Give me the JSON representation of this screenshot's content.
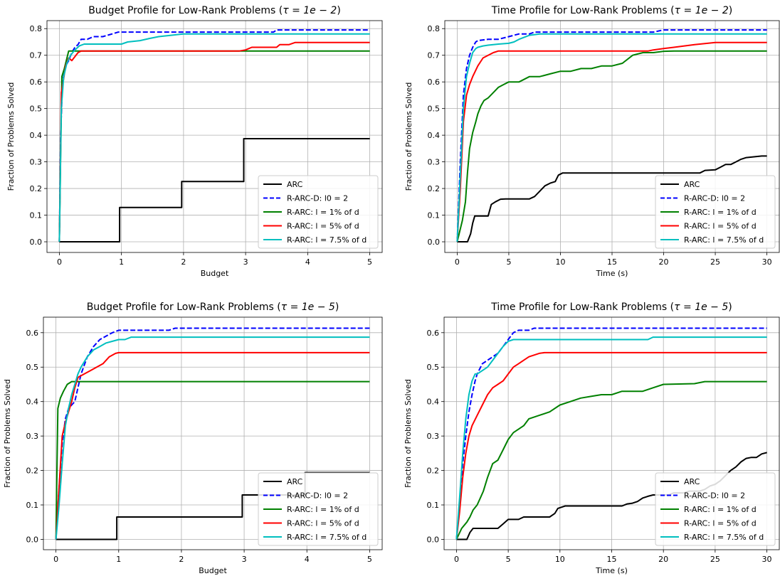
{
  "chart_data": [
    {
      "type": "line",
      "title_main": "Budget Profile for Low-Rank Problems (",
      "title_tau": "τ = 1e − 2",
      "title_end": ")",
      "xlabel": "Budget",
      "ylabel": "Fraction of Problems Solved",
      "xlim": [
        -0.2,
        5.2
      ],
      "ylim": [
        -0.04,
        0.83
      ],
      "xticks": [
        "0",
        "1",
        "2",
        "3",
        "4",
        "5"
      ],
      "yticks": [
        "0.0",
        "0.1",
        "0.2",
        "0.3",
        "0.4",
        "0.5",
        "0.6",
        "0.7",
        "0.8"
      ],
      "grid": true,
      "legend_position": "lower-right",
      "series": [
        {
          "name": "ARC",
          "color": "#000000",
          "dash": "solid",
          "x": [
            0,
            0.97,
            0.97,
            1.97,
            1.97,
            2.97,
            2.97,
            5
          ],
          "y": [
            0,
            0,
            0.129,
            0.129,
            0.226,
            0.226,
            0.387,
            0.387
          ]
        },
        {
          "name": "R-ARC-D: l0 = 2",
          "color": "#0000ff",
          "dash": "dashed",
          "x": [
            0,
            0.02,
            0.05,
            0.1,
            0.15,
            0.2,
            0.25,
            0.3,
            0.35,
            0.45,
            0.55,
            0.7,
            0.85,
            0.95,
            1.5,
            2.0,
            2.5,
            3.0,
            3.45,
            3.5,
            5
          ],
          "y": [
            0,
            0.4,
            0.6,
            0.66,
            0.68,
            0.71,
            0.73,
            0.74,
            0.76,
            0.76,
            0.77,
            0.77,
            0.78,
            0.787,
            0.787,
            0.787,
            0.787,
            0.787,
            0.787,
            0.795,
            0.795
          ]
        },
        {
          "name": "R-ARC: l = 1% of d",
          "color": "#008000",
          "dash": "solid",
          "x": [
            0,
            0.04,
            0.08,
            0.15,
            0.2,
            5
          ],
          "y": [
            0,
            0.62,
            0.65,
            0.716,
            0.716,
            0.716
          ]
        },
        {
          "name": "R-ARC: l = 5% of d",
          "color": "#ff0000",
          "dash": "solid",
          "x": [
            0,
            0.03,
            0.06,
            0.1,
            0.15,
            0.2,
            0.3,
            0.35,
            0.4,
            2.9,
            3.0,
            3.1,
            3.5,
            3.55,
            3.7,
            3.8,
            5
          ],
          "y": [
            0,
            0.56,
            0.6,
            0.66,
            0.69,
            0.68,
            0.71,
            0.716,
            0.716,
            0.716,
            0.72,
            0.73,
            0.73,
            0.74,
            0.74,
            0.748,
            0.748
          ]
        },
        {
          "name": "R-ARC: l = 7.5% of d",
          "color": "#00bfbf",
          "dash": "solid",
          "x": [
            0,
            0.03,
            0.07,
            0.12,
            0.18,
            0.25,
            0.32,
            0.4,
            1.0,
            1.1,
            1.3,
            1.45,
            1.6,
            1.8,
            2.0,
            3.0,
            5
          ],
          "y": [
            0,
            0.5,
            0.62,
            0.67,
            0.7,
            0.72,
            0.735,
            0.742,
            0.742,
            0.75,
            0.755,
            0.763,
            0.77,
            0.775,
            0.78,
            0.78,
            0.78
          ]
        }
      ]
    },
    {
      "type": "line",
      "title_main": "Time Profile for Low-Rank Problems (",
      "title_tau": "τ = 1e − 2",
      "title_end": ")",
      "xlabel": "Time (s)",
      "ylabel": "Fraction of Problems Solved",
      "xlim": [
        -1.2,
        31.2
      ],
      "ylim": [
        -0.04,
        0.83
      ],
      "xticks": [
        "0",
        "5",
        "10",
        "15",
        "20",
        "25",
        "30"
      ],
      "yticks": [
        "0.0",
        "0.1",
        "0.2",
        "0.3",
        "0.4",
        "0.5",
        "0.6",
        "0.7",
        "0.8"
      ],
      "grid": true,
      "legend_position": "lower-right",
      "series": [
        {
          "name": "ARC",
          "color": "#000000",
          "dash": "solid",
          "x": [
            0,
            1.0,
            1.3,
            1.5,
            1.7,
            2.0,
            3.0,
            3.3,
            3.7,
            4.2,
            4.7,
            5.0,
            7.0,
            7.5,
            8.0,
            8.5,
            9.0,
            9.5,
            9.8,
            10.2,
            10.5,
            22.0,
            23.5,
            24.0,
            25.0,
            25.5,
            26.0,
            26.5,
            27.0,
            27.5,
            28.0,
            29.5,
            30.0
          ],
          "y": [
            0,
            0,
            0.03,
            0.07,
            0.097,
            0.097,
            0.097,
            0.14,
            0.15,
            0.16,
            0.161,
            0.161,
            0.161,
            0.17,
            0.19,
            0.21,
            0.22,
            0.226,
            0.25,
            0.258,
            0.258,
            0.258,
            0.258,
            0.268,
            0.27,
            0.28,
            0.29,
            0.29,
            0.3,
            0.31,
            0.316,
            0.322,
            0.322
          ]
        },
        {
          "name": "R-ARC-D: l0 = 2",
          "color": "#0000ff",
          "dash": "dashed",
          "x": [
            0,
            0.3,
            0.6,
            0.9,
            1.2,
            1.5,
            1.8,
            2.0,
            3.0,
            4.0,
            5.0,
            6.0,
            7.0,
            7.5,
            8.0,
            19.0,
            20.0,
            30.0
          ],
          "y": [
            0,
            0.3,
            0.55,
            0.65,
            0.7,
            0.73,
            0.75,
            0.755,
            0.76,
            0.76,
            0.77,
            0.78,
            0.78,
            0.787,
            0.787,
            0.787,
            0.795,
            0.795
          ]
        },
        {
          "name": "R-ARC: l = 1% of d",
          "color": "#008000",
          "dash": "solid",
          "x": [
            0,
            0.5,
            0.8,
            1.0,
            1.2,
            1.5,
            1.8,
            2.0,
            2.3,
            2.6,
            3.0,
            3.5,
            4.0,
            4.5,
            5.0,
            6.0,
            7.0,
            8.0,
            9.0,
            10.0,
            11.0,
            12.0,
            13.0,
            14.0,
            15.0,
            16.0,
            17.0,
            18.0,
            19.0,
            20.0,
            21.0,
            30.0
          ],
          "y": [
            0,
            0.08,
            0.15,
            0.26,
            0.35,
            0.41,
            0.45,
            0.48,
            0.51,
            0.53,
            0.54,
            0.56,
            0.58,
            0.59,
            0.6,
            0.6,
            0.62,
            0.62,
            0.63,
            0.64,
            0.64,
            0.65,
            0.65,
            0.66,
            0.66,
            0.67,
            0.7,
            0.71,
            0.71,
            0.715,
            0.716,
            0.716
          ]
        },
        {
          "name": "R-ARC: l = 5% of d",
          "color": "#ff0000",
          "dash": "solid",
          "x": [
            0,
            0.3,
            0.6,
            0.9,
            1.2,
            1.5,
            2.0,
            2.5,
            3.0,
            3.5,
            4.0,
            18.5,
            19.0,
            20.0,
            21.0,
            23.0,
            25.0,
            25.5,
            30.0
          ],
          "y": [
            0,
            0.2,
            0.45,
            0.55,
            0.59,
            0.62,
            0.66,
            0.69,
            0.7,
            0.71,
            0.716,
            0.716,
            0.72,
            0.725,
            0.73,
            0.74,
            0.748,
            0.748,
            0.748
          ]
        },
        {
          "name": "R-ARC: l = 7.5% of d",
          "color": "#00bfbf",
          "dash": "solid",
          "x": [
            0,
            0.3,
            0.6,
            0.9,
            1.2,
            1.5,
            1.8,
            2.0,
            2.5,
            3.0,
            4.0,
            5.0,
            5.5,
            6.0,
            7.0,
            8.0,
            19.0,
            19.5,
            30.0
          ],
          "y": [
            0,
            0.25,
            0.5,
            0.62,
            0.67,
            0.71,
            0.725,
            0.73,
            0.735,
            0.738,
            0.742,
            0.745,
            0.75,
            0.76,
            0.775,
            0.78,
            0.78,
            0.78,
            0.78
          ]
        }
      ]
    },
    {
      "type": "line",
      "title_main": "Budget Profile for Low-Rank Problems (",
      "title_tau": "τ = 1e − 5",
      "title_end": ")",
      "xlabel": "Budget",
      "ylabel": "Fraction of Problems Solved",
      "xlim": [
        -0.2,
        5.2
      ],
      "ylim": [
        -0.03,
        0.645
      ],
      "xticks": [
        "0",
        "1",
        "2",
        "3",
        "4",
        "5"
      ],
      "yticks": [
        "0.0",
        "0.1",
        "0.2",
        "0.3",
        "0.4",
        "0.5",
        "0.6"
      ],
      "grid": true,
      "legend_position": "lower-right",
      "series": [
        {
          "name": "ARC",
          "color": "#000000",
          "dash": "solid",
          "x": [
            0,
            0.97,
            0.97,
            2.97,
            2.97,
            3.97,
            3.97,
            5
          ],
          "y": [
            0,
            0,
            0.065,
            0.065,
            0.129,
            0.129,
            0.194,
            0.194
          ]
        },
        {
          "name": "R-ARC-D: l0 = 2",
          "color": "#0000ff",
          "dash": "dashed",
          "x": [
            0,
            0.05,
            0.1,
            0.15,
            0.2,
            0.25,
            0.3,
            0.35,
            0.4,
            0.5,
            0.6,
            0.7,
            0.8,
            0.9,
            1.0,
            1.5,
            1.8,
            1.9,
            5
          ],
          "y": [
            0,
            0.15,
            0.28,
            0.35,
            0.38,
            0.39,
            0.4,
            0.44,
            0.48,
            0.53,
            0.56,
            0.58,
            0.59,
            0.6,
            0.607,
            0.607,
            0.607,
            0.613,
            0.613
          ]
        },
        {
          "name": "R-ARC: l = 1% of d",
          "color": "#008000",
          "dash": "solid",
          "x": [
            0,
            0.03,
            0.07,
            0.12,
            0.18,
            0.25,
            5
          ],
          "y": [
            0,
            0.38,
            0.41,
            0.43,
            0.45,
            0.458,
            0.458
          ]
        },
        {
          "name": "R-ARC: l = 5% of d",
          "color": "#ff0000",
          "dash": "solid",
          "x": [
            0,
            0.05,
            0.1,
            0.15,
            0.2,
            0.25,
            0.3,
            0.35,
            0.45,
            0.55,
            0.65,
            0.75,
            0.85,
            0.95,
            1.0,
            5
          ],
          "y": [
            0,
            0.15,
            0.3,
            0.34,
            0.37,
            0.4,
            0.44,
            0.47,
            0.48,
            0.49,
            0.5,
            0.51,
            0.53,
            0.54,
            0.542,
            0.542
          ]
        },
        {
          "name": "R-ARC: l = 7.5% of d",
          "color": "#00bfbf",
          "dash": "solid",
          "x": [
            0,
            0.05,
            0.1,
            0.15,
            0.2,
            0.25,
            0.3,
            0.35,
            0.4,
            0.5,
            0.6,
            0.7,
            0.8,
            0.9,
            1.0,
            1.1,
            1.2,
            5
          ],
          "y": [
            0,
            0.1,
            0.22,
            0.33,
            0.38,
            0.42,
            0.45,
            0.48,
            0.5,
            0.53,
            0.55,
            0.56,
            0.57,
            0.575,
            0.58,
            0.58,
            0.587,
            0.587
          ]
        }
      ]
    },
    {
      "type": "line",
      "title_main": "Time Profile for Low-Rank Problems (",
      "title_tau": "τ = 1e − 5",
      "title_end": ")",
      "xlabel": "Time (s)",
      "ylabel": "Fraction of Problems Solved",
      "xlim": [
        -1.2,
        31.2
      ],
      "ylim": [
        -0.03,
        0.645
      ],
      "xticks": [
        "0",
        "5",
        "10",
        "15",
        "20",
        "25",
        "30"
      ],
      "yticks": [
        "0.0",
        "0.1",
        "0.2",
        "0.3",
        "0.4",
        "0.5",
        "0.6"
      ],
      "grid": true,
      "legend_position": "lower-right",
      "series": [
        {
          "name": "ARC",
          "color": "#000000",
          "dash": "solid",
          "x": [
            0,
            1.0,
            1.3,
            1.6,
            4.0,
            4.5,
            5.0,
            6.0,
            6.5,
            7.0,
            9.0,
            9.5,
            9.8,
            10.0,
            10.5,
            16.0,
            16.5,
            17.0,
            17.5,
            18.0,
            18.5,
            19.0,
            20.0,
            20.5,
            21.0,
            22.0,
            22.5,
            23.0,
            23.5,
            24.0,
            24.5,
            25.0,
            25.5,
            26.0,
            26.5,
            27.0,
            27.5,
            28.0,
            28.5,
            29.0,
            29.5,
            30.0
          ],
          "y": [
            0,
            0,
            0.02,
            0.032,
            0.032,
            0.045,
            0.058,
            0.058,
            0.065,
            0.065,
            0.065,
            0.075,
            0.09,
            0.092,
            0.097,
            0.097,
            0.103,
            0.105,
            0.11,
            0.12,
            0.125,
            0.129,
            0.129,
            0.129,
            0.135,
            0.135,
            0.14,
            0.14,
            0.14,
            0.145,
            0.155,
            0.16,
            0.17,
            0.185,
            0.2,
            0.21,
            0.225,
            0.235,
            0.238,
            0.238,
            0.248,
            0.252
          ]
        },
        {
          "name": "R-ARC-D: l0 = 2",
          "color": "#0000ff",
          "dash": "dashed",
          "x": [
            0,
            0.3,
            0.6,
            0.9,
            1.2,
            1.5,
            1.8,
            2.0,
            2.5,
            3.0,
            3.5,
            4.0,
            4.5,
            5.0,
            5.5,
            6.0,
            7.0,
            7.5,
            30.0
          ],
          "y": [
            0,
            0.1,
            0.22,
            0.3,
            0.37,
            0.42,
            0.46,
            0.48,
            0.51,
            0.52,
            0.53,
            0.54,
            0.56,
            0.58,
            0.6,
            0.607,
            0.607,
            0.613,
            0.613
          ]
        },
        {
          "name": "R-ARC: l = 1% of d",
          "color": "#008000",
          "dash": "solid",
          "x": [
            0,
            0.5,
            1.0,
            1.3,
            1.6,
            2.0,
            2.3,
            2.6,
            3.0,
            3.5,
            4.0,
            4.5,
            5.0,
            5.5,
            6.0,
            6.5,
            7.0,
            8.0,
            9.0,
            10.0,
            11.0,
            12.0,
            13.0,
            14.0,
            15.0,
            16.0,
            18.0,
            19.0,
            20.0,
            23.0,
            24.0,
            30.0
          ],
          "y": [
            0,
            0.032,
            0.05,
            0.065,
            0.085,
            0.1,
            0.12,
            0.14,
            0.18,
            0.22,
            0.23,
            0.26,
            0.29,
            0.31,
            0.32,
            0.33,
            0.35,
            0.36,
            0.37,
            0.39,
            0.4,
            0.41,
            0.415,
            0.42,
            0.42,
            0.43,
            0.43,
            0.44,
            0.45,
            0.452,
            0.458,
            0.458
          ]
        },
        {
          "name": "R-ARC: l = 5% of d",
          "color": "#ff0000",
          "dash": "solid",
          "x": [
            0,
            0.3,
            0.6,
            0.9,
            1.2,
            1.5,
            2.0,
            2.5,
            3.0,
            3.5,
            4.0,
            4.5,
            5.0,
            5.5,
            6.0,
            6.5,
            7.0,
            8.0,
            8.5,
            30.0
          ],
          "y": [
            0,
            0.08,
            0.18,
            0.25,
            0.3,
            0.33,
            0.36,
            0.39,
            0.42,
            0.44,
            0.45,
            0.46,
            0.48,
            0.5,
            0.51,
            0.52,
            0.53,
            0.54,
            0.542,
            0.542
          ]
        },
        {
          "name": "R-ARC: l = 7.5% of d",
          "color": "#00bfbf",
          "dash": "solid",
          "x": [
            0,
            0.3,
            0.6,
            0.9,
            1.2,
            1.5,
            1.8,
            2.0,
            2.5,
            3.0,
            3.5,
            4.0,
            4.5,
            5.0,
            5.5,
            6.0,
            7.0,
            18.5,
            19.0,
            30.0
          ],
          "y": [
            0,
            0.12,
            0.25,
            0.35,
            0.42,
            0.46,
            0.48,
            0.48,
            0.49,
            0.5,
            0.52,
            0.54,
            0.56,
            0.575,
            0.58,
            0.58,
            0.58,
            0.58,
            0.587,
            0.587
          ]
        }
      ]
    }
  ]
}
